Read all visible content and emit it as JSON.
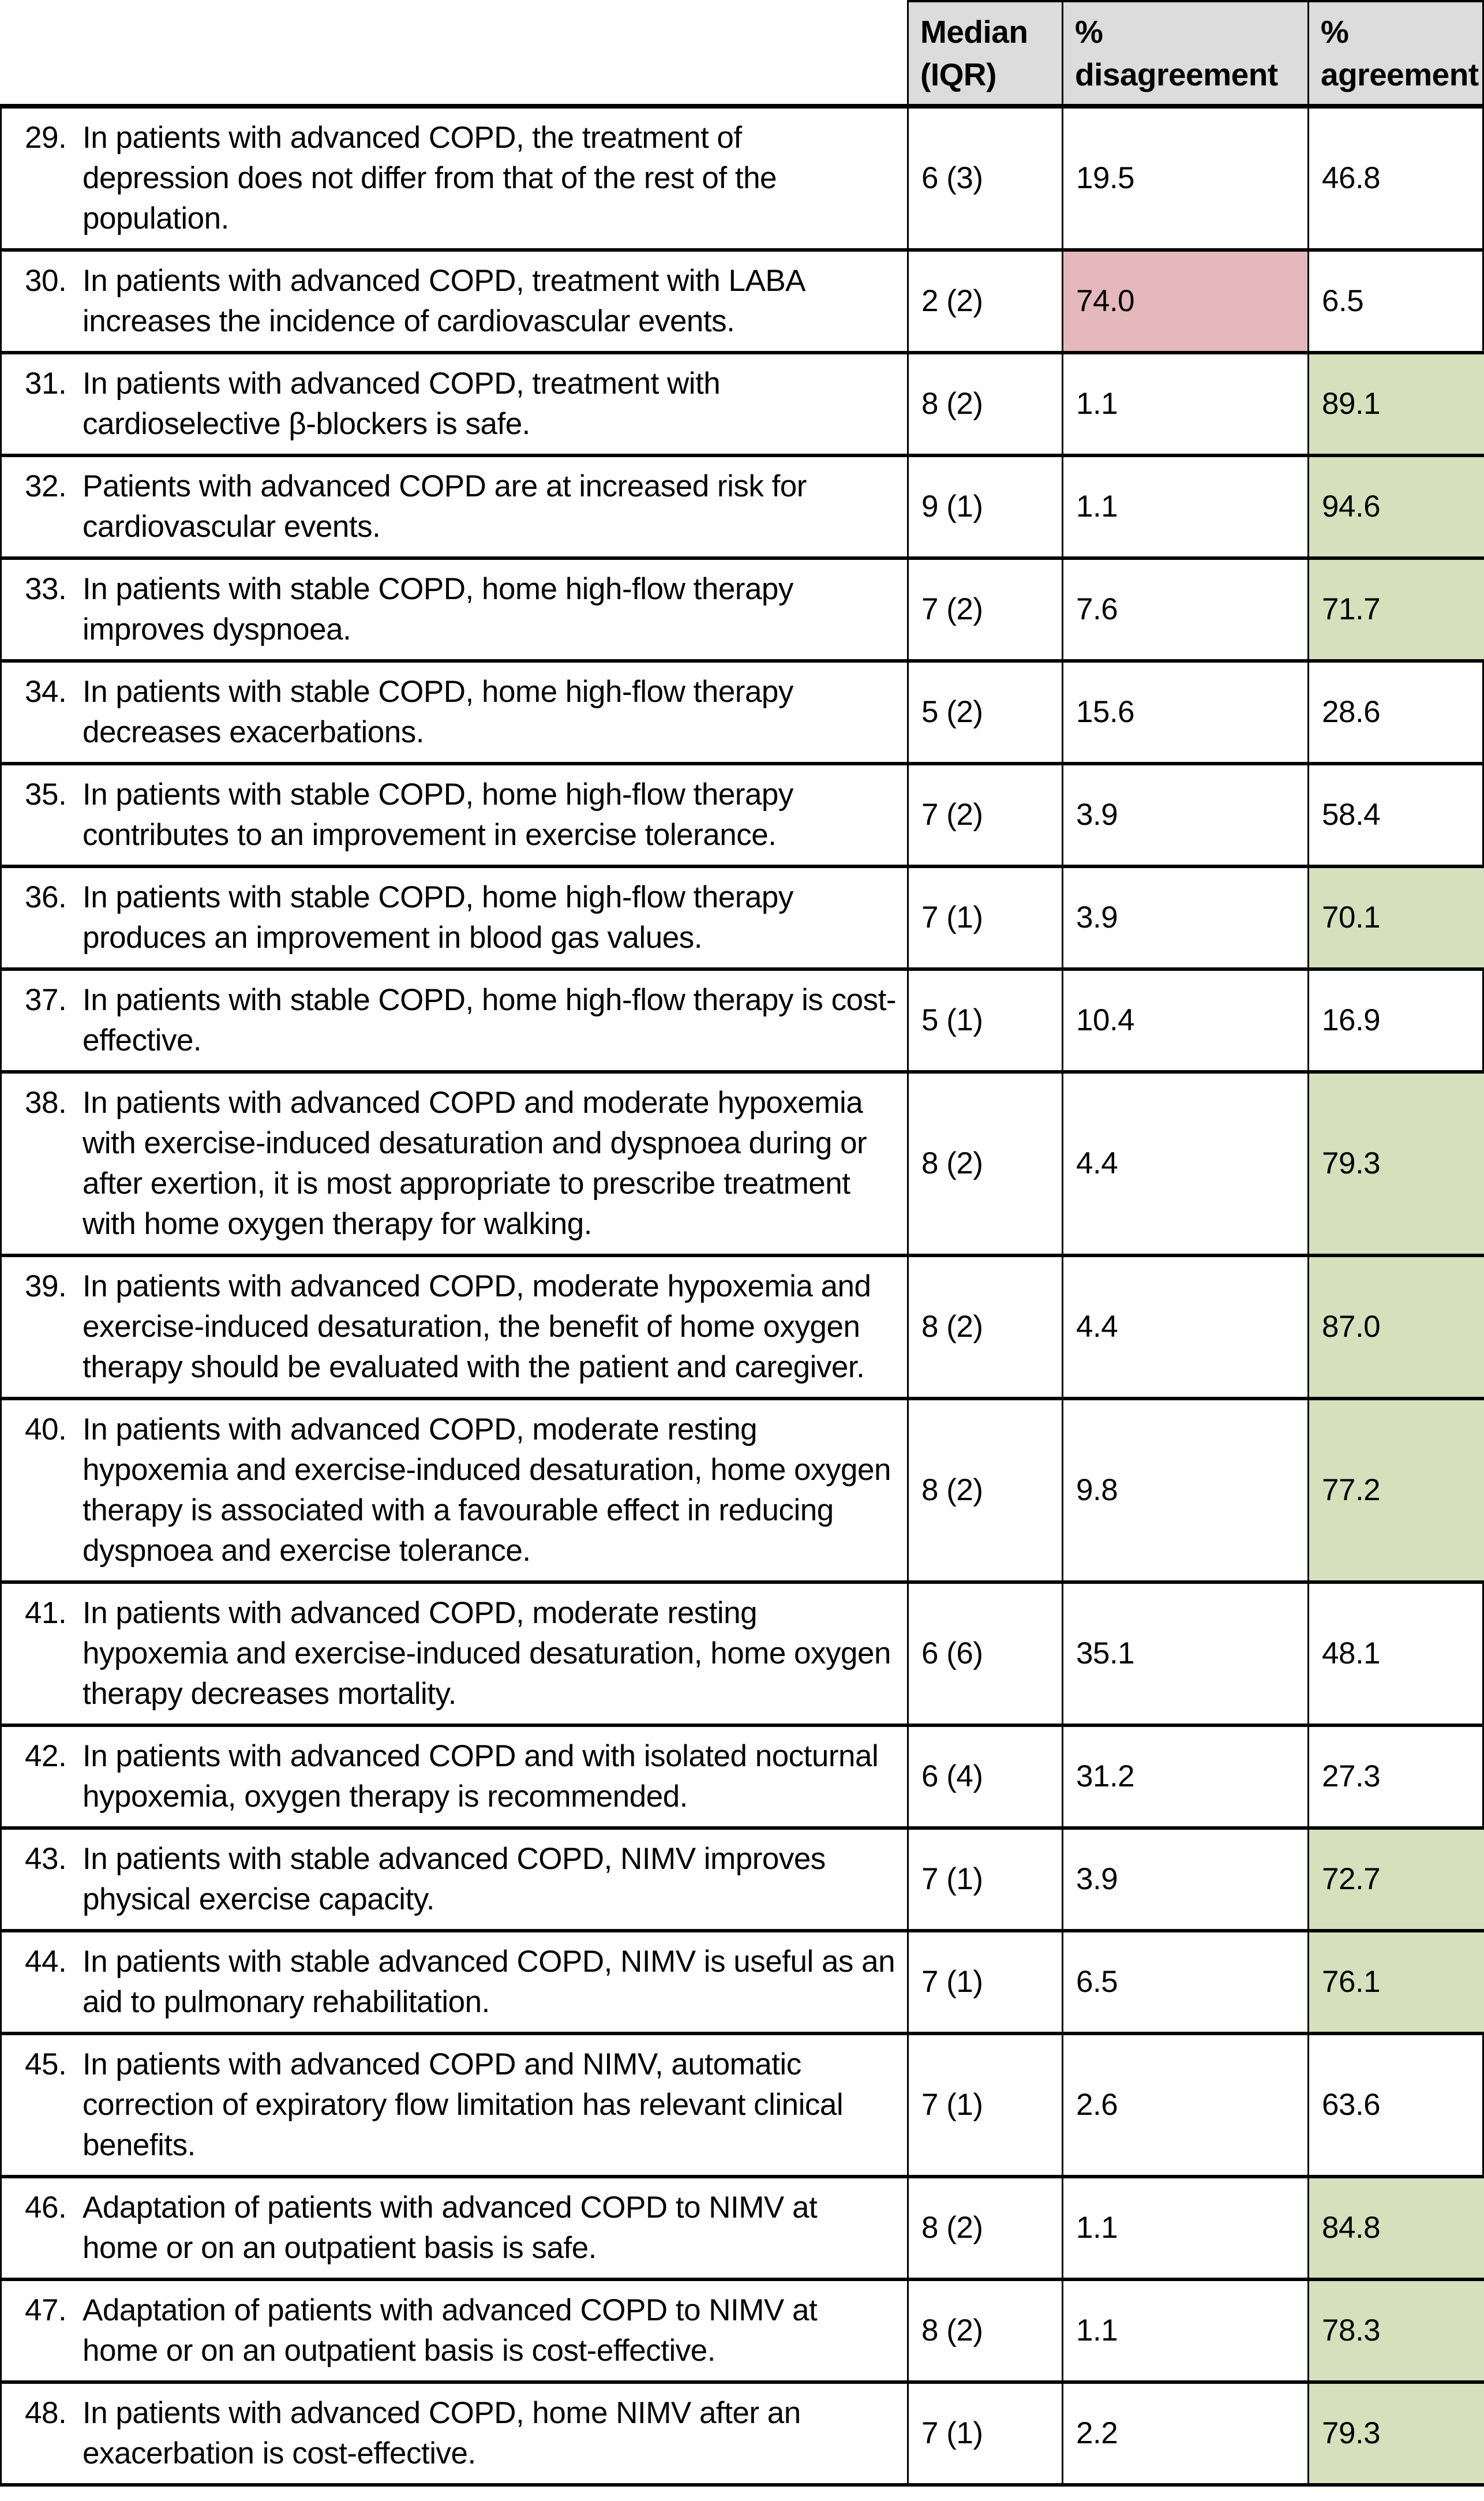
{
  "table": {
    "headers": {
      "median": "Median (IQR)",
      "disagreement": "% disagreement",
      "agreement": "% agreement"
    },
    "rows": [
      {
        "num": "29.",
        "statement": "In patients with advanced COPD, the treatment of depression does not differ from that of the rest of the population.",
        "median": "6 (3)",
        "disagreement": "19.5",
        "agreement": "46.8",
        "highlight": "none"
      },
      {
        "num": "30.",
        "statement": "In patients with advanced COPD, treatment with LABA increases the incidence of cardiovascular events.",
        "median": "2 (2)",
        "disagreement": "74.0",
        "agreement": "6.5",
        "highlight": "disagreement"
      },
      {
        "num": "31.",
        "statement": "In patients with advanced COPD, treatment with cardioselective β-blockers is safe.",
        "median": "8 (2)",
        "disagreement": "1.1",
        "agreement": "89.1",
        "highlight": "agreement"
      },
      {
        "num": "32.",
        "statement": "Patients with advanced COPD are at increased risk for cardiovascular events.",
        "median": "9 (1)",
        "disagreement": "1.1",
        "agreement": "94.6",
        "highlight": "agreement"
      },
      {
        "num": "33.",
        "statement": "In patients with stable COPD, home high-flow therapy improves dyspnoea.",
        "median": "7 (2)",
        "disagreement": "7.6",
        "agreement": "71.7",
        "highlight": "agreement"
      },
      {
        "num": "34.",
        "statement": "In patients with stable COPD, home high-flow therapy decreases exacerbations.",
        "median": "5 (2)",
        "disagreement": "15.6",
        "agreement": "28.6",
        "highlight": "none"
      },
      {
        "num": "35.",
        "statement": "In patients with stable COPD, home high-flow therapy contributes to an improvement in exercise tolerance.",
        "median": "7 (2)",
        "disagreement": "3.9",
        "agreement": "58.4",
        "highlight": "none"
      },
      {
        "num": "36.",
        "statement": "In patients with stable COPD, home high-flow therapy produces an improvement in blood gas values.",
        "median": "7 (1)",
        "disagreement": "3.9",
        "agreement": "70.1",
        "highlight": "agreement"
      },
      {
        "num": "37.",
        "statement": "In patients with stable COPD, home high-flow therapy is cost-effective.",
        "median": "5 (1)",
        "disagreement": "10.4",
        "agreement": "16.9",
        "highlight": "none"
      },
      {
        "num": "38.",
        "statement": "In patients with advanced COPD and moderate hypoxemia with exercise-induced desaturation and dyspnoea during or after exertion, it is most appropriate to prescribe treatment with home oxygen therapy for walking.",
        "median": "8 (2)",
        "disagreement": "4.4",
        "agreement": "79.3",
        "highlight": "agreement"
      },
      {
        "num": "39.",
        "statement": "In patients with advanced COPD, moderate hypoxemia and exercise-induced desaturation, the benefit of home oxygen therapy should be evaluated with the patient and caregiver.",
        "median": "8 (2)",
        "disagreement": "4.4",
        "agreement": "87.0",
        "highlight": "agreement"
      },
      {
        "num": "40.",
        "statement": "In patients with advanced COPD, moderate resting hypoxemia and exercise-induced desaturation, home oxygen therapy is associated with a favourable effect in reducing dyspnoea and exercise tolerance.",
        "median": "8 (2)",
        "disagreement": "9.8",
        "agreement": "77.2",
        "highlight": "agreement"
      },
      {
        "num": "41.",
        "statement": "In patients with advanced COPD, moderate resting hypoxemia and exercise-induced desaturation, home oxygen therapy decreases mortality.",
        "median": "6 (6)",
        "disagreement": "35.1",
        "agreement": "48.1",
        "highlight": "none"
      },
      {
        "num": "42.",
        "statement": "In patients with advanced COPD and with isolated nocturnal hypoxemia, oxygen therapy is recommended.",
        "median": "6 (4)",
        "disagreement": "31.2",
        "agreement": "27.3",
        "highlight": "none"
      },
      {
        "num": "43.",
        "statement": "In patients with stable advanced COPD, NIMV improves physical exercise capacity.",
        "median": "7 (1)",
        "disagreement": "3.9",
        "agreement": "72.7",
        "highlight": "agreement"
      },
      {
        "num": "44.",
        "statement": "In patients with stable advanced COPD, NIMV is useful as an aid to pulmonary rehabilitation.",
        "median": "7 (1)",
        "disagreement": "6.5",
        "agreement": "76.1",
        "highlight": "agreement"
      },
      {
        "num": "45.",
        "statement": "In patients with advanced COPD and NIMV, automatic correction of expiratory flow limitation has relevant clinical benefits.",
        "median": "7 (1)",
        "disagreement": "2.6",
        "agreement": "63.6",
        "highlight": "none"
      },
      {
        "num": "46.",
        "statement": "Adaptation of patients with advanced COPD to NIMV at home or on an outpatient basis is safe.",
        "median": "8 (2)",
        "disagreement": "1.1",
        "agreement": "84.8",
        "highlight": "agreement"
      },
      {
        "num": "47.",
        "statement": "Adaptation of patients with advanced COPD to NIMV at home or on an outpatient basis is cost-effective.",
        "median": "8 (2)",
        "disagreement": "1.1",
        "agreement": "78.3",
        "highlight": "agreement"
      },
      {
        "num": "48.",
        "statement": "In patients with advanced COPD, home NIMV after an exacerbation is cost-effective.",
        "median": "7 (1)",
        "disagreement": "2.2",
        "agreement": "79.3",
        "highlight": "agreement"
      }
    ]
  },
  "colors": {
    "header_bg": "#dcdcdc",
    "agree_bg": "#d6e0bc",
    "disagree_bg": "#e5b8bc",
    "border": "#000000"
  }
}
